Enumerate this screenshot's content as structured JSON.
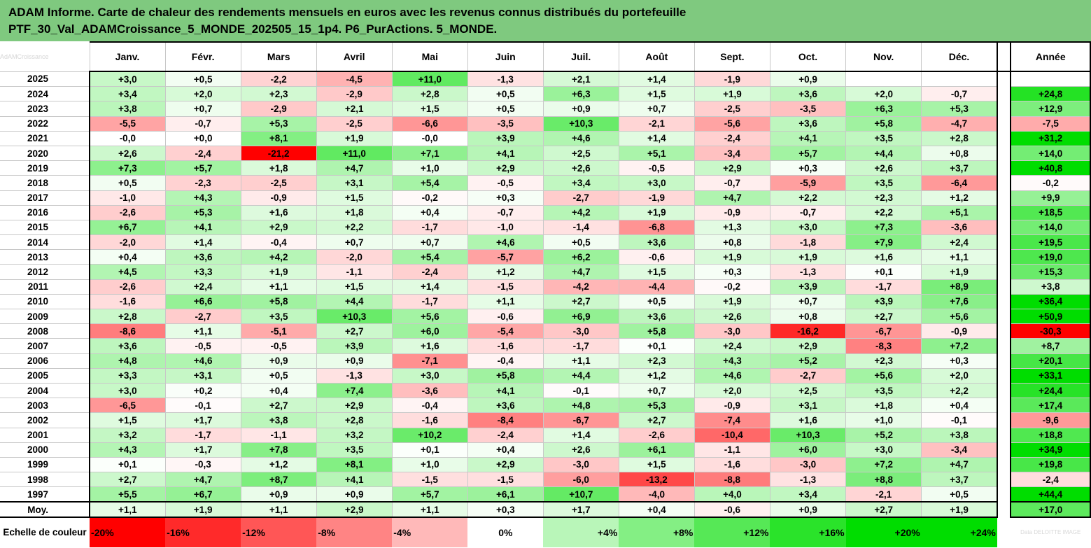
{
  "header": {
    "title_line1": "ADAM Informe. Carte de chaleur des rendements mensuels en euros avec les revenus connus distribués du portefeuille",
    "title_line2": "PTF_30_Val_ADAMCroissance_5_MONDE_202505_15_1p4. P6_PurActions. 5_MONDE."
  },
  "corner_watermark": "AdAMCroissance",
  "chart_data": {
    "type": "heatmap",
    "columns": [
      "Janv.",
      "Févr.",
      "Mars",
      "Avril",
      "Mai",
      "Juin",
      "Juil.",
      "Août",
      "Sept.",
      "Oct.",
      "Nov.",
      "Déc."
    ],
    "annual_label": "Année",
    "rows": [
      {
        "year": "2025",
        "values": [
          "+3,0",
          "+0,5",
          "-2,2",
          "-4,5",
          "+11,0",
          "-1,3",
          "+2,1",
          "+1,4",
          "-1,9",
          "+0,9",
          "",
          ""
        ],
        "annual": ""
      },
      {
        "year": "2024",
        "values": [
          "+3,4",
          "+2,0",
          "+2,3",
          "-2,9",
          "+2,8",
          "+0,5",
          "+6,3",
          "+1,5",
          "+1,9",
          "+3,6",
          "+2,0",
          "-0,7"
        ],
        "annual": "+24,8"
      },
      {
        "year": "2023",
        "values": [
          "+3,8",
          "+0,7",
          "-2,9",
          "+2,1",
          "+1,5",
          "+0,5",
          "+0,9",
          "+0,7",
          "-2,5",
          "-3,5",
          "+6,3",
          "+5,3"
        ],
        "annual": "+12,9"
      },
      {
        "year": "2022",
        "values": [
          "-5,5",
          "-0,7",
          "+5,3",
          "-2,5",
          "-6,6",
          "-3,5",
          "+10,3",
          "-2,1",
          "-5,6",
          "+3,6",
          "+5,8",
          "-4,7"
        ],
        "annual": "-7,5"
      },
      {
        "year": "2021",
        "values": [
          "-0,0",
          "+0,0",
          "+8,1",
          "+1,9",
          "-0,0",
          "+3,9",
          "+4,6",
          "+1,4",
          "-2,4",
          "+4,1",
          "+3,5",
          "+2,8"
        ],
        "annual": "+31,2"
      },
      {
        "year": "2020",
        "values": [
          "+2,6",
          "-2,4",
          "-21,2",
          "+11,0",
          "+7,1",
          "+4,1",
          "+2,5",
          "+5,1",
          "-3,4",
          "+5,7",
          "+4,4",
          "+0,8"
        ],
        "annual": "+14,0"
      },
      {
        "year": "2019",
        "values": [
          "+7,3",
          "+5,7",
          "+1,8",
          "+4,7",
          "+1,0",
          "+2,9",
          "+2,6",
          "-0,5",
          "+2,9",
          "+0,3",
          "+2,6",
          "+3,7"
        ],
        "annual": "+40,8"
      },
      {
        "year": "2018",
        "values": [
          "+0,5",
          "-2,3",
          "-2,5",
          "+3,1",
          "+5,4",
          "-0,5",
          "+3,4",
          "+3,0",
          "-0,7",
          "-5,9",
          "+3,5",
          "-6,4"
        ],
        "annual": "-0,2"
      },
      {
        "year": "2017",
        "values": [
          "-1,0",
          "+4,3",
          "-0,9",
          "+1,5",
          "-0,2",
          "+0,3",
          "-2,7",
          "-1,9",
          "+4,7",
          "+2,2",
          "+2,3",
          "+1,2"
        ],
        "annual": "+9,9"
      },
      {
        "year": "2016",
        "values": [
          "-2,6",
          "+5,3",
          "+1,6",
          "+1,8",
          "+0,4",
          "-0,7",
          "+4,2",
          "+1,9",
          "-0,9",
          "-0,7",
          "+2,2",
          "+5,1"
        ],
        "annual": "+18,5"
      },
      {
        "year": "2015",
        "values": [
          "+6,7",
          "+4,1",
          "+2,9",
          "+2,2",
          "-1,7",
          "-1,0",
          "-1,4",
          "-6,8",
          "+1,3",
          "+3,0",
          "+7,3",
          "-3,6"
        ],
        "annual": "+14,0"
      },
      {
        "year": "2014",
        "values": [
          "-2,0",
          "+1,4",
          "-0,4",
          "+0,7",
          "+0,7",
          "+4,6",
          "+0,5",
          "+3,6",
          "+0,8",
          "-1,8",
          "+7,9",
          "+2,4"
        ],
        "annual": "+19,5"
      },
      {
        "year": "2013",
        "values": [
          "+0,4",
          "+3,6",
          "+4,2",
          "-2,0",
          "+5,4",
          "-5,7",
          "+6,2",
          "-0,6",
          "+1,9",
          "+1,9",
          "+1,6",
          "+1,1"
        ],
        "annual": "+19,0"
      },
      {
        "year": "2012",
        "values": [
          "+4,5",
          "+3,3",
          "+1,9",
          "-1,1",
          "-2,4",
          "+1,2",
          "+4,7",
          "+1,5",
          "+0,3",
          "-1,3",
          "+0,1",
          "+1,9"
        ],
        "annual": "+15,3"
      },
      {
        "year": "2011",
        "values": [
          "-2,6",
          "+2,4",
          "+1,1",
          "+1,5",
          "+1,4",
          "-1,5",
          "-4,2",
          "-4,4",
          "-0,2",
          "+3,9",
          "-1,7",
          "+8,9"
        ],
        "annual": "+3,8"
      },
      {
        "year": "2010",
        "values": [
          "-1,6",
          "+6,6",
          "+5,8",
          "+4,4",
          "-1,7",
          "+1,1",
          "+2,7",
          "+0,5",
          "+1,9",
          "+0,7",
          "+3,9",
          "+7,6"
        ],
        "annual": "+36,4"
      },
      {
        "year": "2009",
        "values": [
          "+2,8",
          "-2,7",
          "+3,5",
          "+10,3",
          "+5,6",
          "-0,6",
          "+6,9",
          "+3,6",
          "+2,6",
          "+0,8",
          "+2,7",
          "+5,6"
        ],
        "annual": "+50,9"
      },
      {
        "year": "2008",
        "values": [
          "-8,6",
          "+1,1",
          "-5,1",
          "+2,7",
          "+6,0",
          "-5,4",
          "-3,0",
          "+5,8",
          "-3,0",
          "-16,2",
          "-6,7",
          "-0,9"
        ],
        "annual": "-30,3"
      },
      {
        "year": "2007",
        "values": [
          "+3,6",
          "-0,5",
          "-0,5",
          "+3,9",
          "+1,6",
          "-1,6",
          "-1,7",
          "+0,1",
          "+2,4",
          "+2,9",
          "-8,3",
          "+7,2"
        ],
        "annual": "+8,7"
      },
      {
        "year": "2006",
        "values": [
          "+4,8",
          "+4,6",
          "+0,9",
          "+0,9",
          "-7,1",
          "-0,4",
          "+1,1",
          "+2,3",
          "+4,3",
          "+5,2",
          "+2,3",
          "+0,3"
        ],
        "annual": "+20,1"
      },
      {
        "year": "2005",
        "values": [
          "+3,3",
          "+3,1",
          "+0,5",
          "-1,3",
          "+3,0",
          "+5,8",
          "+4,4",
          "+1,2",
          "+4,6",
          "-2,7",
          "+5,6",
          "+2,0"
        ],
        "annual": "+33,1"
      },
      {
        "year": "2004",
        "values": [
          "+3,0",
          "+0,2",
          "+0,4",
          "+7,4",
          "-3,6",
          "+4,1",
          "-0,1",
          "+0,7",
          "+2,0",
          "+2,5",
          "+3,5",
          "+2,2"
        ],
        "annual": "+24,4"
      },
      {
        "year": "2003",
        "values": [
          "-6,5",
          "-0,1",
          "+2,7",
          "+2,9",
          "-0,4",
          "+3,6",
          "+4,8",
          "+5,3",
          "-0,9",
          "+3,1",
          "+1,8",
          "+0,4"
        ],
        "annual": "+17,4"
      },
      {
        "year": "2002",
        "values": [
          "+1,5",
          "+1,7",
          "+3,8",
          "+2,8",
          "-1,6",
          "-8,4",
          "-6,7",
          "+2,7",
          "-7,4",
          "+1,6",
          "+1,0",
          "-0,1"
        ],
        "annual": "-9,6"
      },
      {
        "year": "2001",
        "values": [
          "+3,2",
          "-1,7",
          "-1,1",
          "+3,2",
          "+10,2",
          "-2,4",
          "+1,4",
          "-2,6",
          "-10,4",
          "+10,3",
          "+5,2",
          "+3,8"
        ],
        "annual": "+18,8"
      },
      {
        "year": "2000",
        "values": [
          "+4,3",
          "+1,7",
          "+7,8",
          "+3,5",
          "+0,1",
          "+0,4",
          "+2,6",
          "+6,1",
          "-1,1",
          "+6,0",
          "+3,0",
          "-3,4"
        ],
        "annual": "+34,9"
      },
      {
        "year": "1999",
        "values": [
          "+0,1",
          "-0,3",
          "+1,2",
          "+8,1",
          "+1,0",
          "+2,9",
          "-3,0",
          "+1,5",
          "-1,6",
          "-3,0",
          "+7,2",
          "+4,7"
        ],
        "annual": "+19,8"
      },
      {
        "year": "1998",
        "values": [
          "+2,7",
          "+4,7",
          "+8,7",
          "+4,1",
          "-1,5",
          "-1,5",
          "-6,0",
          "-13,2",
          "-8,8",
          "-1,3",
          "+8,8",
          "+3,7"
        ],
        "annual": "-2,4"
      },
      {
        "year": "1997",
        "values": [
          "+5,5",
          "+6,7",
          "+0,9",
          "+0,9",
          "+5,7",
          "+6,1",
          "+10,7",
          "-4,0",
          "+4,0",
          "+3,4",
          "-2,1",
          "+0,5"
        ],
        "annual": "+44,4"
      }
    ],
    "average": {
      "label": "Moy.",
      "values": [
        "+1,1",
        "+1,9",
        "+1,1",
        "+2,9",
        "+1,1",
        "+0,3",
        "+1,7",
        "+0,4",
        "-0,6",
        "+0,9",
        "+2,7",
        "+1,9"
      ],
      "annual": "+17,0"
    },
    "scale": {
      "label": "Echelle de couleur",
      "labels": [
        "-20%",
        "-16%",
        "-12%",
        "-8%",
        "-4%",
        "0%",
        "+4%",
        "+8%",
        "+12%",
        "+16%",
        "+20%",
        "+24%"
      ],
      "values": [
        -20,
        -16,
        -12,
        -8,
        -4,
        0,
        4,
        8,
        12,
        16,
        20,
        24
      ],
      "annual_watermark": "Data DELOITTE IMAGE"
    },
    "colors": {
      "negative": "#ff0000",
      "neutral": "#ffffff",
      "positive": "#00dd00"
    }
  }
}
